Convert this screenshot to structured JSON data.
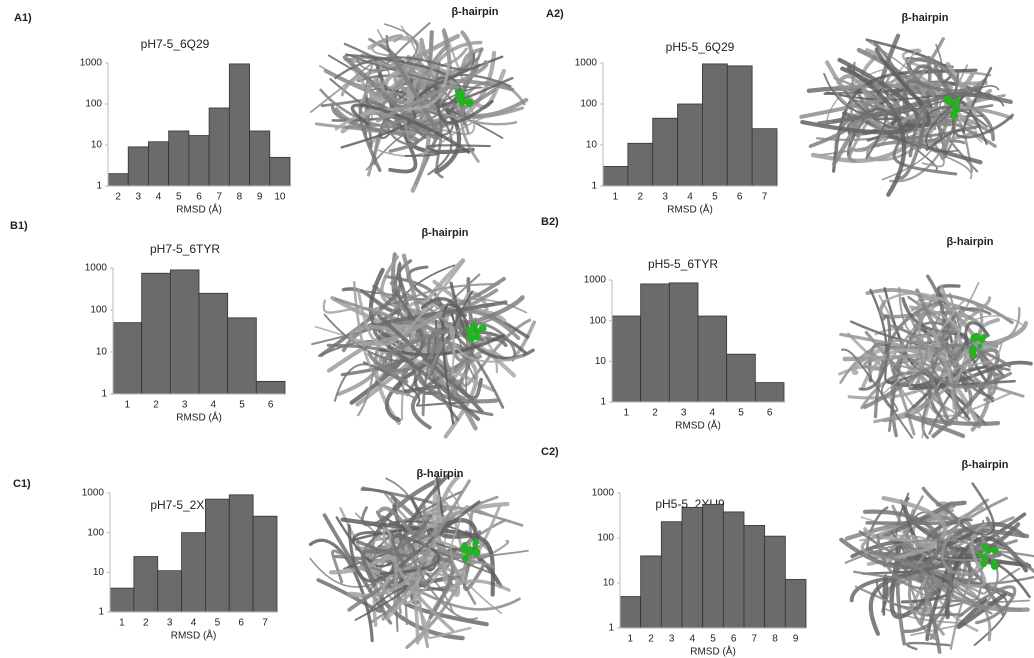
{
  "chart_data": [
    {
      "type": "bar",
      "panel": "A1)",
      "title": "pH7-5_6Q29",
      "annotation": "β-hairpin",
      "xlabel": "RMSD (Å)",
      "log_scale": true,
      "color": "#6b6b6b",
      "categories": [
        "2",
        "3",
        "4",
        "5",
        "6",
        "7",
        "8",
        "9",
        "10"
      ],
      "values": [
        2,
        9,
        12,
        22,
        17,
        80,
        950,
        22,
        5
      ],
      "ylim": [
        1,
        1000
      ],
      "yticks": [
        1,
        10,
        100,
        1000
      ]
    },
    {
      "type": "bar",
      "panel": "A2)",
      "title": "pH5-5_6Q29",
      "annotation": "β-hairpin",
      "xlabel": "RMSD (Å)",
      "log_scale": true,
      "color": "#6b6b6b",
      "categories": [
        "1",
        "2",
        "3",
        "4",
        "5",
        "6",
        "7"
      ],
      "values": [
        3,
        11,
        45,
        100,
        950,
        850,
        25
      ],
      "ylim": [
        1,
        1000
      ],
      "yticks": [
        1,
        10,
        100,
        1000
      ]
    },
    {
      "type": "bar",
      "panel": "B1)",
      "title": "pH7-5_6TYR",
      "annotation": "β-hairpin",
      "xlabel": "RMSD (Å)",
      "log_scale": true,
      "color": "#6b6b6b",
      "categories": [
        "1",
        "2",
        "3",
        "4",
        "5",
        "6"
      ],
      "values": [
        50,
        750,
        900,
        250,
        65,
        2
      ],
      "ylim": [
        1,
        1000
      ],
      "yticks": [
        1,
        10,
        100,
        1000
      ]
    },
    {
      "type": "bar",
      "panel": "B2)",
      "title": "pH5-5_6TYR",
      "annotation": "β-hairpin",
      "xlabel": "RMSD (Å)",
      "log_scale": true,
      "color": "#6b6b6b",
      "categories": [
        "1",
        "2",
        "3",
        "4",
        "5",
        "6"
      ],
      "values": [
        130,
        800,
        850,
        130,
        15,
        3
      ],
      "ylim": [
        1,
        1000
      ],
      "yticks": [
        1,
        10,
        100,
        1000
      ]
    },
    {
      "type": "bar",
      "panel": "C1)",
      "title": "pH7-5_2XU9",
      "annotation": "β-hairpin",
      "xlabel": "RMSD (Å)",
      "log_scale": true,
      "color": "#6b6b6b",
      "categories": [
        "1",
        "2",
        "3",
        "4",
        "5",
        "6",
        "7"
      ],
      "values": [
        4,
        25,
        11,
        100,
        700,
        900,
        260
      ],
      "ylim": [
        1,
        1000
      ],
      "yticks": [
        1,
        10,
        100,
        1000
      ]
    },
    {
      "type": "bar",
      "panel": "C2)",
      "title": "pH5-5_2XU9",
      "annotation": "β-hairpin",
      "xlabel": "RMSD (Å)",
      "log_scale": true,
      "color": "#6b6b6b",
      "categories": [
        "1",
        "2",
        "3",
        "4",
        "5",
        "6",
        "7",
        "8",
        "9"
      ],
      "values": [
        5,
        40,
        230,
        480,
        560,
        380,
        190,
        110,
        12
      ],
      "ylim": [
        1,
        1000
      ],
      "yticks": [
        1,
        10,
        100,
        1000
      ]
    }
  ]
}
